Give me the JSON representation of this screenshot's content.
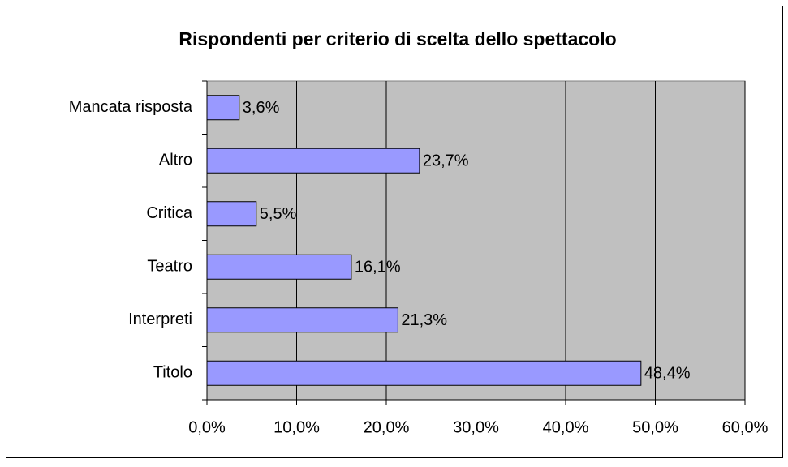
{
  "chart_data": {
    "type": "bar",
    "orientation": "horizontal",
    "title": "Rispondenti per criterio di scelta dello spettacolo",
    "categories": [
      "Mancata risposta",
      "Altro",
      "Critica",
      "Teatro",
      "Interpreti",
      "Titolo"
    ],
    "values": [
      3.6,
      23.7,
      5.5,
      16.1,
      21.3,
      48.4
    ],
    "value_labels": [
      "3,6%",
      "23,7%",
      "5,5%",
      "16,1%",
      "21,3%",
      "48,4%"
    ],
    "color": "#9999ff",
    "xlim": [
      0,
      60
    ],
    "xticks": [
      {
        "value": 0,
        "label": "0,0%"
      },
      {
        "value": 10,
        "label": "10,0%"
      },
      {
        "value": 20,
        "label": "20,0%"
      },
      {
        "value": 30,
        "label": "30,0%"
      },
      {
        "value": 40,
        "label": "40,0%"
      },
      {
        "value": 50,
        "label": "50,0%"
      },
      {
        "value": 60,
        "label": "60,0%"
      }
    ],
    "grid": true
  }
}
